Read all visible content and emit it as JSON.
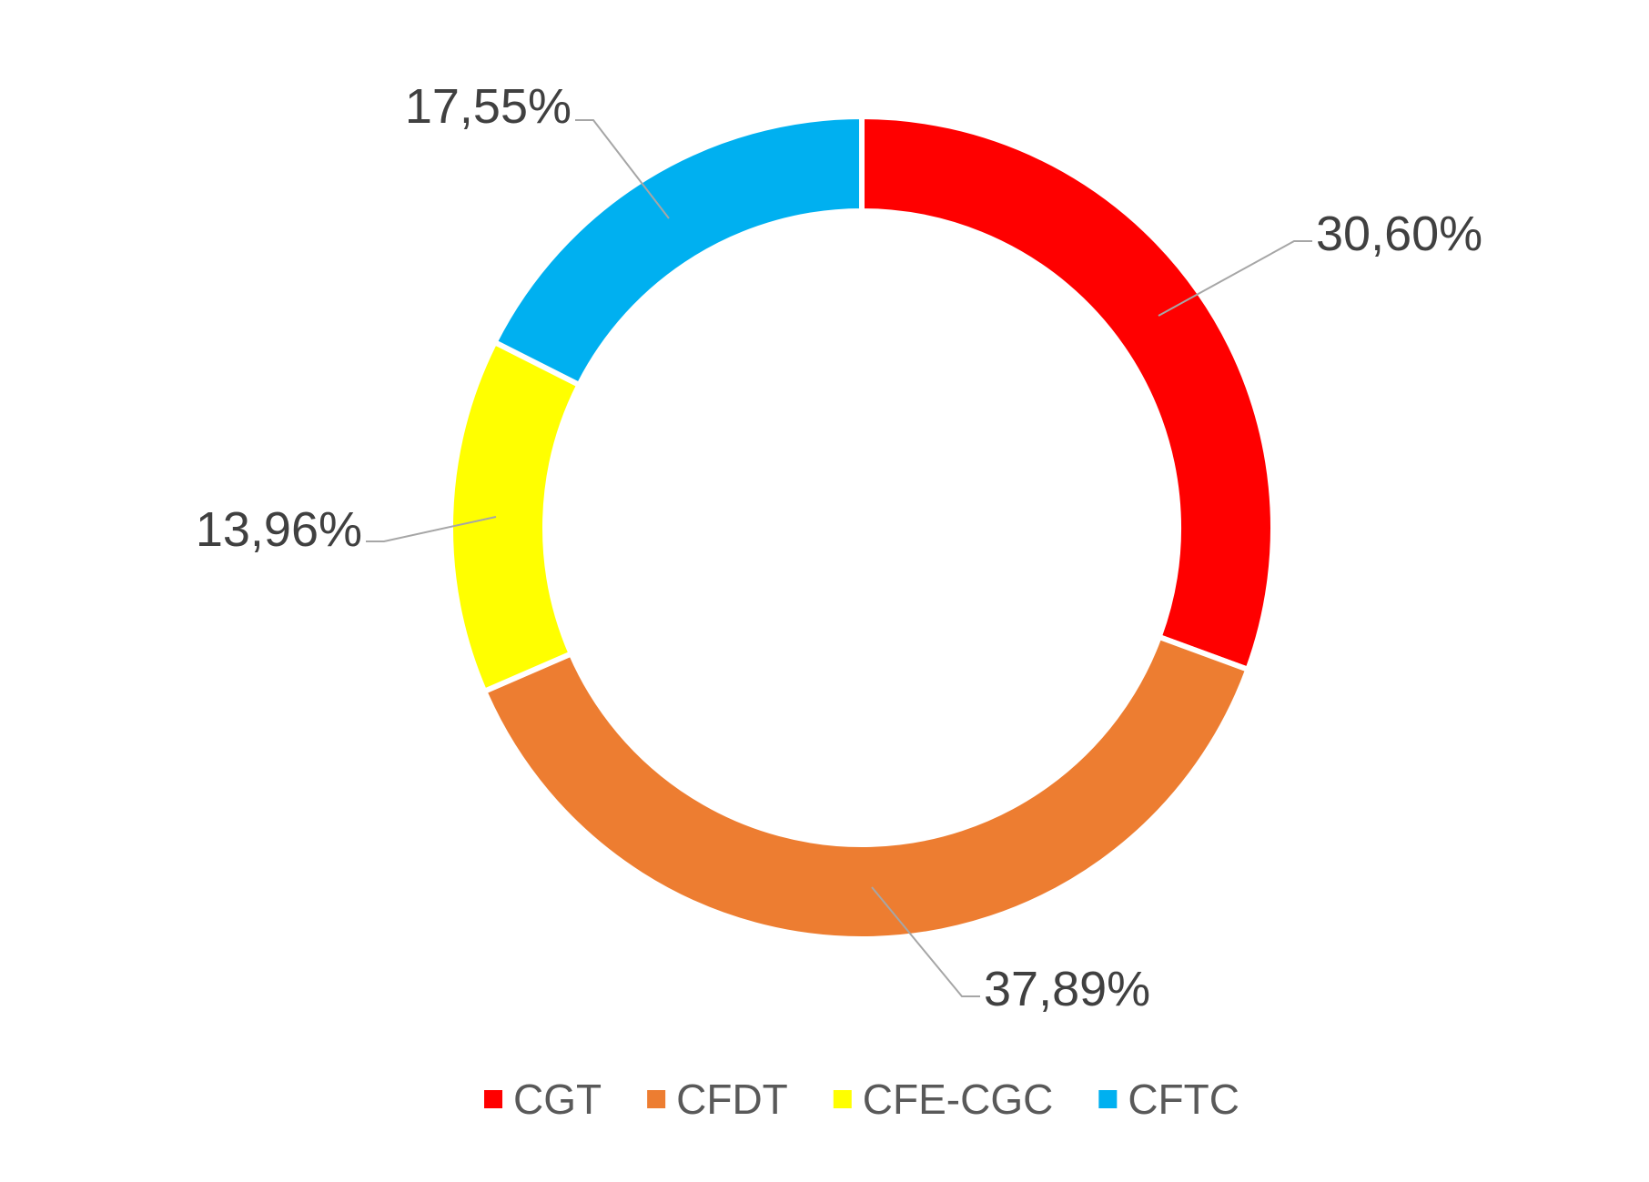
{
  "chart_data": {
    "type": "pie",
    "variant": "doughnut",
    "title": "",
    "categories": [
      "CGT",
      "CFDT",
      "CFE-CGC",
      "CFTC"
    ],
    "values": [
      30.6,
      37.89,
      13.96,
      17.55
    ],
    "data_labels": [
      "30,60%",
      "37,89%",
      "13,96%",
      "17,55%"
    ],
    "colors": [
      "#FF0000",
      "#ED7D31",
      "#FFFF00",
      "#00B0F0"
    ],
    "legend": {
      "position": "bottom",
      "entries": [
        "CGT",
        "CFDT",
        "CFE-CGC",
        "CFTC"
      ]
    },
    "start_angle": "top",
    "direction": "clockwise"
  }
}
